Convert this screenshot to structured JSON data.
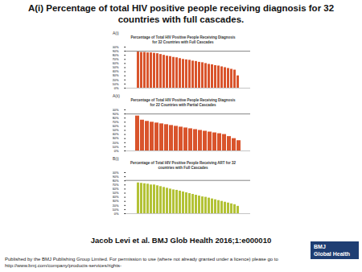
{
  "page": {
    "title": "A(i) Percentage of total HIV positive people receiving diagnosis for 32 countries with full cascades.",
    "citation": "Jacob Levi et al. BMJ Glob Health 2016;1:e000010",
    "logo": [
      "BMJ",
      "Global Health"
    ],
    "footer": "Published by the BMJ Publishing Group Limited. For permission to use (where not already granted under a licence) please go to http://www.bmj.com/company/products-services/rights-"
  },
  "chart_data": [
    {
      "type": "bar",
      "panel": "A(i)",
      "title": "Percentage of Total HIV Positive People Receiving Diagnosis for 32 Countries with Full Cascades",
      "categories": [
        null,
        null,
        null,
        null,
        null,
        null,
        null,
        null,
        null,
        null,
        null,
        null,
        null,
        null,
        null,
        null,
        null,
        null,
        null,
        null,
        null,
        null,
        null,
        null,
        null,
        null,
        null,
        null,
        null,
        null,
        null,
        null
      ],
      "values": [
        88,
        87,
        87,
        86,
        86,
        85,
        84,
        82,
        80,
        78,
        77,
        75,
        74,
        72,
        70,
        69,
        68,
        66,
        65,
        63,
        62,
        60,
        58,
        57,
        55,
        54,
        52,
        50,
        48,
        46,
        44,
        30
      ],
      "color": "#d9542c",
      "target": 90,
      "ylim": [
        0,
        100
      ],
      "yticks": [
        {
          "value": 0,
          "label": "0%"
        },
        {
          "value": 10,
          "label": "10%"
        },
        {
          "value": 20,
          "label": "20%"
        },
        {
          "value": 30,
          "label": "30%"
        },
        {
          "value": 40,
          "label": "40%"
        },
        {
          "value": 50,
          "label": "50%"
        },
        {
          "value": 60,
          "label": "60%"
        },
        {
          "value": 70,
          "label": "70%"
        },
        {
          "value": 80,
          "label": "80%"
        },
        {
          "value": 90,
          "label": "90%"
        },
        {
          "value": 100,
          "label": "100%"
        }
      ],
      "grid": false,
      "tick_labels": "y"
    },
    {
      "type": "bar",
      "panel": "A(ii)",
      "title": "Percentage of Total HIV Positive People Receiving Diagnosis for 22 Countries with Partial Cascades",
      "categories": [
        null,
        null,
        null,
        null,
        null,
        null,
        null,
        null,
        null,
        null,
        null,
        null,
        null,
        null,
        null,
        null,
        null,
        null,
        null,
        null,
        null,
        null
      ],
      "values": [
        85,
        75,
        72,
        70,
        68,
        66,
        64,
        62,
        60,
        58,
        56,
        54,
        52,
        50,
        48,
        46,
        44,
        42,
        40,
        35,
        30,
        25
      ],
      "color": "#d9542c",
      "target": 90,
      "ylim": [
        0,
        100
      ],
      "yticks": [
        {
          "value": 0,
          "label": "0%"
        },
        {
          "value": 10,
          "label": "10%"
        },
        {
          "value": 20,
          "label": "20%"
        },
        {
          "value": 30,
          "label": "30%"
        },
        {
          "value": 40,
          "label": "40%"
        },
        {
          "value": 50,
          "label": "50%"
        },
        {
          "value": 60,
          "label": "60%"
        },
        {
          "value": 70,
          "label": "70%"
        },
        {
          "value": 80,
          "label": "80%"
        },
        {
          "value": 90,
          "label": "90%"
        },
        {
          "value": 100,
          "label": "100%"
        }
      ],
      "grid": false,
      "tick_labels": "y"
    },
    {
      "type": "bar",
      "panel": "B(i)",
      "title": "Percentage of Total HIV Positive People Receiving ART for 32 countries with Full Cascades",
      "categories": [
        null,
        null,
        null,
        null,
        null,
        null,
        null,
        null,
        null,
        null,
        null,
        null,
        null,
        null,
        null,
        null,
        null,
        null,
        null,
        null,
        null,
        null,
        null,
        null,
        null,
        null,
        null,
        null,
        null,
        null,
        null,
        null
      ],
      "values": [
        75,
        74,
        73,
        72,
        70,
        70,
        68,
        66,
        64,
        62,
        60,
        58,
        57,
        55,
        53,
        51,
        49,
        47,
        45,
        43,
        41,
        40,
        38,
        36,
        34,
        32,
        30,
        28,
        26,
        24,
        22,
        18
      ],
      "color": "#b3c236",
      "target": 81,
      "ylim": [
        0,
        100
      ],
      "yticks": [
        {
          "value": 0,
          "label": "0%"
        },
        {
          "value": 10,
          "label": "10%"
        },
        {
          "value": 20,
          "label": "20%"
        },
        {
          "value": 30,
          "label": "30%"
        },
        {
          "value": 40,
          "label": "40%"
        },
        {
          "value": 50,
          "label": "50%"
        },
        {
          "value": 60,
          "label": "60%"
        },
        {
          "value": 70,
          "label": "70%"
        },
        {
          "value": 80,
          "label": "80%"
        },
        {
          "value": 90,
          "label": "90%"
        },
        {
          "value": 100,
          "label": "100%"
        }
      ],
      "grid": false,
      "tick_labels": "y"
    }
  ]
}
